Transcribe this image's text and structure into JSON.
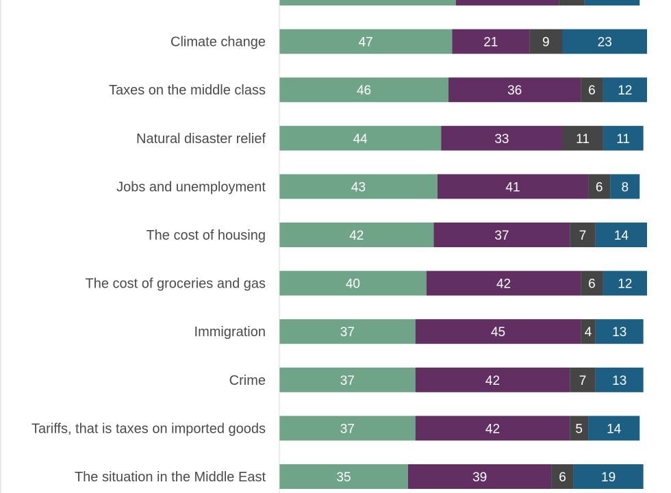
{
  "chart_data": {
    "type": "bar",
    "orientation": "horizontal",
    "stacked": true,
    "categories": [
      "",
      "Climate change",
      "Taxes on the middle class ",
      "Natural disaster relief",
      "Jobs and unemployment ",
      "The cost of housing",
      "The cost of groceries and gas",
      "Immigration",
      "Crime",
      "Tariffs, that is taxes on imported goods",
      "The situation in the Middle East"
    ],
    "series": [
      {
        "color": "#6fa489",
        "values": [
          null,
          47,
          46,
          44,
          43,
          42,
          40,
          37,
          37,
          37,
          35
        ]
      },
      {
        "color": "#622f62",
        "values": [
          null,
          21,
          36,
          33,
          41,
          37,
          42,
          45,
          42,
          42,
          39
        ]
      },
      {
        "color": "#454545",
        "values": [
          null,
          9,
          6,
          11,
          6,
          7,
          6,
          4,
          7,
          5,
          6
        ]
      },
      {
        "color": "#1c5f82",
        "values": [
          null,
          23,
          12,
          11,
          8,
          14,
          12,
          13,
          13,
          14,
          19
        ]
      }
    ],
    "partial_top_row_values": [
      48,
      28,
      7,
      15
    ],
    "xlim": [
      0,
      100
    ],
    "grid": false,
    "legend": "none"
  }
}
